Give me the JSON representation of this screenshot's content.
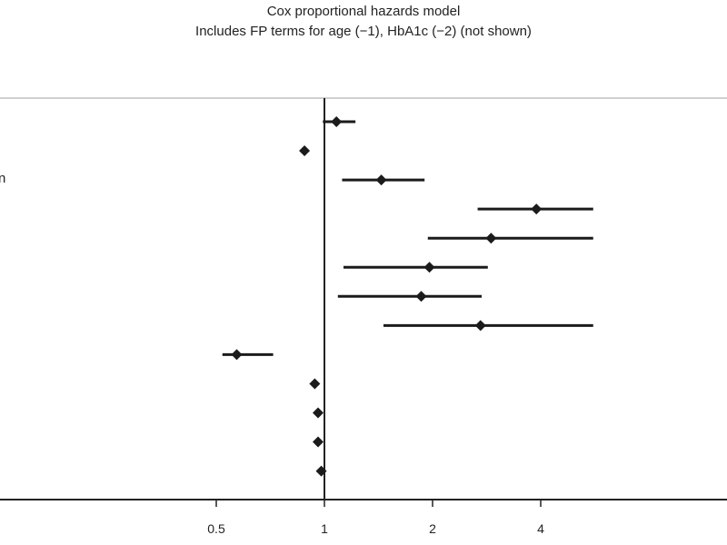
{
  "chart_data": {
    "type": "forest",
    "title": "Cox proportional hazards model",
    "subtitle": "Includes FP terms for age (−1), HbA1c (−2) (not shown)",
    "xscale": "log2",
    "xlim": [
      0.25,
      5.6
    ],
    "reference_line": 1,
    "xticks": [
      {
        "value": 0.5,
        "label": "0.5"
      },
      {
        "value": 1,
        "label": "1"
      },
      {
        "value": 2,
        "label": "2"
      },
      {
        "value": 4,
        "label": "4"
      }
    ],
    "visible_label_fragment": "n",
    "rows": [
      {
        "hr": 1.08,
        "lower": 0.99,
        "upper": 1.22
      },
      {
        "hr": 0.88,
        "lower": 0.88,
        "upper": 0.88
      },
      {
        "hr": 1.44,
        "lower": 1.12,
        "upper": 1.9
      },
      {
        "hr": 3.89,
        "lower": 2.67,
        "upper": 5.6
      },
      {
        "hr": 2.91,
        "lower": 1.94,
        "upper": 5.6
      },
      {
        "hr": 1.96,
        "lower": 1.13,
        "upper": 2.85
      },
      {
        "hr": 1.86,
        "lower": 1.09,
        "upper": 2.74
      },
      {
        "hr": 2.72,
        "lower": 1.46,
        "upper": 5.6
      },
      {
        "hr": 0.57,
        "lower": 0.52,
        "upper": 0.72
      },
      {
        "hr": 0.94,
        "lower": 0.94,
        "upper": 0.94
      },
      {
        "hr": 0.96,
        "lower": 0.96,
        "upper": 0.96
      },
      {
        "hr": 0.96,
        "lower": 0.96,
        "upper": 0.96
      },
      {
        "hr": 0.98,
        "lower": 0.98,
        "upper": 0.98
      }
    ]
  }
}
